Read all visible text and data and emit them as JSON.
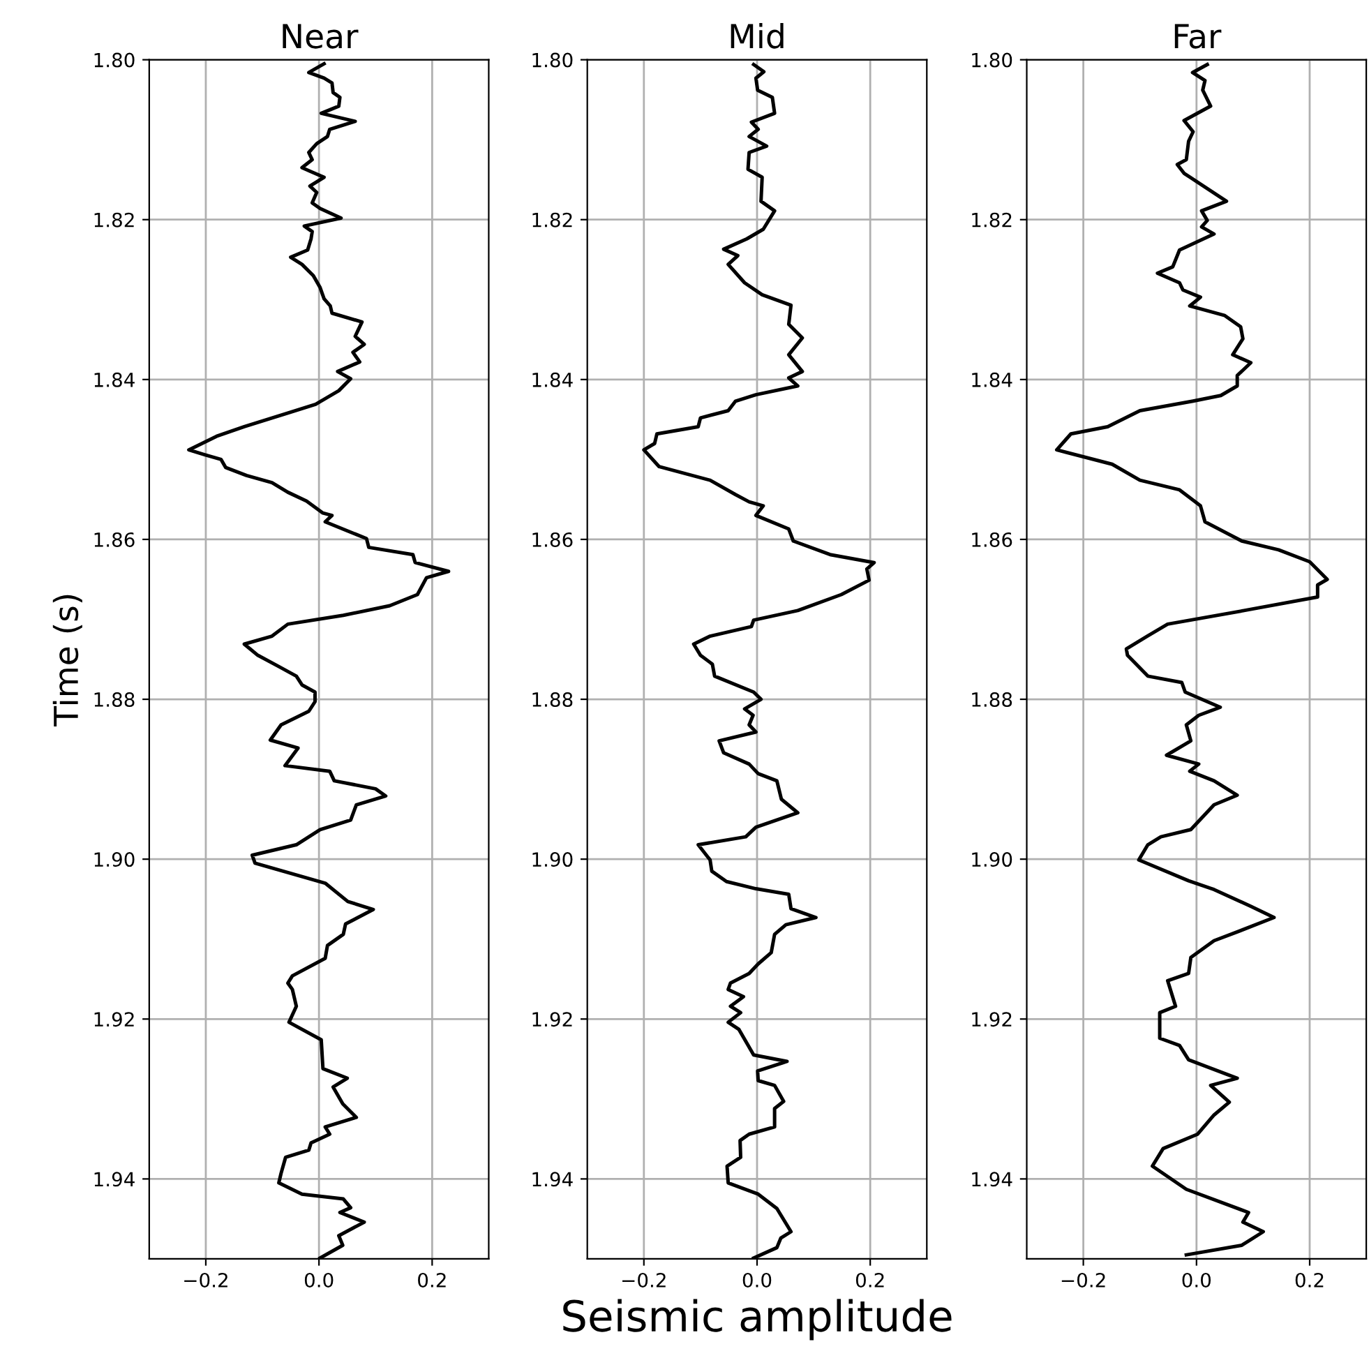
{
  "chart_data": [
    {
      "type": "line",
      "title": "Near",
      "ylabel": "Time (s)",
      "xlim": [
        -0.3,
        0.3
      ],
      "xticks": [
        {
          "value": -0.2,
          "label": "−0.2"
        },
        {
          "value": 0.0,
          "label": "0.0"
        },
        {
          "value": 0.2,
          "label": "0.2"
        }
      ],
      "ylim": [
        1.95,
        1.8
      ],
      "yticks": [
        {
          "value": 1.8,
          "label": "1.80"
        },
        {
          "value": 1.82,
          "label": "1.82"
        },
        {
          "value": 1.84,
          "label": "1.84"
        },
        {
          "value": 1.86,
          "label": "1.86"
        },
        {
          "value": 1.88,
          "label": "1.88"
        },
        {
          "value": 1.9,
          "label": "1.90"
        },
        {
          "value": 1.92,
          "label": "1.92"
        },
        {
          "value": 1.94,
          "label": "1.94"
        }
      ],
      "grid": true,
      "line_style": "solid",
      "marker": "none",
      "series": [
        {
          "color": "#000000",
          "x": [
            0.009,
            -0.018,
            0.009,
            0.023,
            0.025,
            0.037,
            0.035,
            0.004,
            0.064,
            0.019,
            0.015,
            -0.004,
            -0.018,
            -0.012,
            -0.03,
            -0.014,
            0.009,
            -0.016,
            -0.004,
            -0.012,
            0.002,
            0.039,
            -0.026,
            -0.012,
            -0.014,
            -0.02,
            -0.05,
            -0.03,
            -0.01,
            0.002,
            0.009,
            0.02,
            0.023,
            0.076,
            0.064,
            0.08,
            0.06,
            0.072,
            0.033,
            0.056,
            0.035,
            -0.006,
            -0.055,
            -0.132,
            -0.181,
            -0.23,
            -0.202,
            -0.173,
            -0.165,
            -0.128,
            -0.083,
            -0.055,
            -0.022,
            0.007,
            0.023,
            0.011,
            0.084,
            0.088,
            0.166,
            0.17,
            0.229,
            0.19,
            0.174,
            0.125,
            0.043,
            -0.055,
            -0.083,
            -0.132,
            -0.108,
            -0.071,
            -0.04,
            -0.03,
            -0.007,
            -0.007,
            -0.018,
            -0.067,
            -0.086,
            -0.037,
            -0.06,
            0.019,
            0.027,
            0.1,
            0.118,
            0.066,
            0.056,
            0.002,
            -0.04,
            -0.118,
            -0.113,
            0.011,
            0.051,
            0.096,
            0.047,
            0.043,
            0.015,
            0.011,
            -0.047,
            -0.055,
            -0.047,
            -0.04,
            -0.053,
            0.004,
            0.007,
            0.05,
            0.025,
            0.042,
            0.066,
            0.011,
            0.019,
            -0.014,
            -0.018,
            -0.059,
            -0.067,
            -0.071,
            -0.03,
            0.043,
            0.056,
            0.037,
            0.08,
            0.035,
            0.042,
            0.002
          ],
          "values": [
            1.8005,
            1.8016,
            1.8023,
            1.8029,
            1.8041,
            1.8047,
            1.8058,
            1.8067,
            1.8077,
            1.8087,
            1.8096,
            1.8105,
            1.8116,
            1.8125,
            1.8135,
            1.814,
            1.8147,
            1.8158,
            1.8166,
            1.8179,
            1.8186,
            1.8198,
            1.8208,
            1.8215,
            1.8224,
            1.8238,
            1.8247,
            1.8256,
            1.827,
            1.8285,
            1.8299,
            1.8308,
            1.8317,
            1.8328,
            1.8346,
            1.8356,
            1.8366,
            1.8378,
            1.839,
            1.8399,
            1.8414,
            1.8431,
            1.8442,
            1.8459,
            1.8471,
            1.8488,
            1.8494,
            1.85,
            1.851,
            1.852,
            1.8529,
            1.8541,
            1.8552,
            1.8567,
            1.857,
            1.8578,
            1.8599,
            1.861,
            1.8619,
            1.8629,
            1.864,
            1.8648,
            1.8669,
            1.8683,
            1.8695,
            1.8706,
            1.8721,
            1.8731,
            1.8745,
            1.8759,
            1.8771,
            1.8782,
            1.8791,
            1.8803,
            1.8815,
            1.8832,
            1.8851,
            1.8861,
            1.8883,
            1.889,
            1.8902,
            1.8912,
            1.8921,
            1.8932,
            1.8951,
            1.8963,
            1.8982,
            1.8995,
            1.9005,
            1.903,
            1.9053,
            1.9063,
            1.9081,
            1.9094,
            1.9108,
            1.9124,
            1.9146,
            1.9155,
            1.9163,
            1.9184,
            1.9204,
            1.9226,
            1.9262,
            1.9274,
            1.9285,
            1.9306,
            1.9323,
            1.9335,
            1.9344,
            1.9355,
            1.9364,
            1.9373,
            1.9393,
            1.9405,
            1.9419,
            1.9425,
            1.9436,
            1.9442,
            1.9454,
            1.9471,
            1.9483,
            1.9499
          ]
        }
      ]
    },
    {
      "type": "line",
      "title": "Mid",
      "xlabel": "Seismic amplitude",
      "xlim": [
        -0.3,
        0.3
      ],
      "xticks": [
        {
          "value": -0.2,
          "label": "−0.2"
        },
        {
          "value": 0.0,
          "label": "0.0"
        },
        {
          "value": 0.2,
          "label": "0.2"
        }
      ],
      "ylim": [
        1.95,
        1.8
      ],
      "yticks": [
        {
          "value": 1.8,
          "label": "1.80"
        },
        {
          "value": 1.82,
          "label": "1.82"
        },
        {
          "value": 1.84,
          "label": "1.84"
        },
        {
          "value": 1.86,
          "label": "1.86"
        },
        {
          "value": 1.88,
          "label": "1.88"
        },
        {
          "value": 1.9,
          "label": "1.90"
        },
        {
          "value": 1.92,
          "label": "1.92"
        },
        {
          "value": 1.94,
          "label": "1.94"
        }
      ],
      "grid": true,
      "line_style": "solid",
      "marker": "none",
      "series": [
        {
          "color": "#000000",
          "x": [
            -0.006,
            0.012,
            -0.002,
            0.001,
            0.027,
            0.031,
            -0.01,
            0.002,
            -0.014,
            0.017,
            -0.014,
            -0.016,
            0.009,
            0.007,
            0.031,
            0.011,
            -0.018,
            -0.059,
            -0.034,
            -0.051,
            -0.022,
            0.009,
            0.06,
            0.056,
            0.08,
            0.056,
            0.08,
            0.056,
            0.072,
            -0.002,
            -0.038,
            -0.051,
            -0.1,
            -0.104,
            -0.177,
            -0.181,
            -0.2,
            -0.173,
            -0.083,
            -0.038,
            -0.014,
            0.011,
            -0.002,
            0.056,
            0.064,
            0.129,
            0.207,
            0.194,
            0.198,
            0.149,
            0.072,
            -0.006,
            -0.01,
            -0.083,
            -0.112,
            -0.1,
            -0.079,
            -0.075,
            -0.006,
            0.007,
            -0.022,
            -0.007,
            -0.014,
            -0.002,
            -0.067,
            -0.059,
            -0.014,
            0.002,
            0.035,
            0.043,
            0.072,
            -0.002,
            -0.02,
            -0.104,
            -0.083,
            -0.08,
            -0.054,
            -0.002,
            0.056,
            0.06,
            0.104,
            0.051,
            0.031,
            0.025,
            0.002,
            -0.014,
            -0.047,
            -0.051,
            -0.024,
            -0.047,
            -0.029,
            -0.051,
            -0.032,
            -0.006,
            0.053,
            0.001,
            0.002,
            0.031,
            0.047,
            0.031,
            0.031,
            -0.014,
            -0.03,
            -0.029,
            -0.053,
            -0.051,
            0.002,
            0.035,
            0.06,
            0.042,
            0.035,
            -0.006
          ],
          "values": [
            1.8006,
            1.8015,
            1.8023,
            1.8038,
            1.8047,
            1.8067,
            1.8078,
            1.8087,
            1.8096,
            1.8108,
            1.8116,
            1.8137,
            1.8147,
            1.8177,
            1.8189,
            1.8212,
            1.8224,
            1.8237,
            1.8245,
            1.8256,
            1.8279,
            1.8294,
            1.8307,
            1.8331,
            1.8348,
            1.8369,
            1.839,
            1.8398,
            1.8408,
            1.8419,
            1.8427,
            1.8439,
            1.8448,
            1.8459,
            1.8468,
            1.848,
            1.8488,
            1.8509,
            1.8526,
            1.8544,
            1.8553,
            1.8558,
            1.857,
            1.8587,
            1.8602,
            1.8619,
            1.8629,
            1.8637,
            1.8651,
            1.8669,
            1.8689,
            1.8701,
            1.8709,
            1.8721,
            1.8731,
            1.8745,
            1.8756,
            1.8771,
            1.8791,
            1.88,
            1.8812,
            1.882,
            1.8832,
            1.8841,
            1.8852,
            1.8867,
            1.8881,
            1.8893,
            1.8902,
            1.8925,
            1.8942,
            1.896,
            1.8972,
            1.8982,
            1.9001,
            1.9015,
            1.9028,
            1.9037,
            1.9044,
            1.9062,
            1.9073,
            1.9082,
            1.9094,
            1.9117,
            1.9131,
            1.9143,
            1.9155,
            1.9163,
            1.9172,
            1.9184,
            1.9192,
            1.9204,
            1.9213,
            1.9245,
            1.9253,
            1.9265,
            1.9277,
            1.9283,
            1.9303,
            1.9312,
            1.9335,
            1.9344,
            1.9352,
            1.9373,
            1.9384,
            1.9405,
            1.9419,
            1.9437,
            1.9466,
            1.9474,
            1.9486,
            1.9499
          ]
        }
      ]
    },
    {
      "type": "line",
      "title": "Far",
      "xlim": [
        -0.3,
        0.3
      ],
      "xticks": [
        {
          "value": -0.2,
          "label": "−0.2"
        },
        {
          "value": 0.0,
          "label": "0.0"
        },
        {
          "value": 0.2,
          "label": "0.2"
        }
      ],
      "ylim": [
        1.95,
        1.8
      ],
      "yticks": [
        {
          "value": 1.8,
          "label": "1.80"
        },
        {
          "value": 1.82,
          "label": "1.82"
        },
        {
          "value": 1.84,
          "label": "1.84"
        },
        {
          "value": 1.86,
          "label": "1.86"
        },
        {
          "value": 1.88,
          "label": "1.88"
        },
        {
          "value": 1.9,
          "label": "1.90"
        },
        {
          "value": 1.92,
          "label": "1.92"
        },
        {
          "value": 1.94,
          "label": "1.94"
        }
      ],
      "grid": true,
      "line_style": "solid",
      "marker": "none",
      "series": [
        {
          "color": "#000000",
          "x": [
            0.019,
            -0.007,
            0.015,
            0.011,
            0.025,
            -0.022,
            -0.006,
            -0.014,
            -0.018,
            -0.034,
            -0.022,
            0.053,
            0.009,
            0.019,
            0.009,
            0.031,
            -0.03,
            -0.042,
            -0.069,
            -0.03,
            -0.024,
            0.007,
            -0.012,
            0.05,
            0.078,
            0.082,
            0.064,
            0.096,
            0.072,
            0.072,
            0.043,
            -0.006,
            -0.1,
            -0.157,
            -0.222,
            -0.247,
            -0.149,
            -0.1,
            -0.03,
            0.007,
            0.015,
            0.08,
            0.145,
            0.2,
            0.231,
            0.214,
            0.214,
            0.084,
            -0.051,
            -0.087,
            -0.124,
            -0.122,
            -0.086,
            -0.026,
            -0.02,
            0.042,
            0.004,
            -0.018,
            -0.01,
            -0.053,
            0.004,
            -0.012,
            0.031,
            0.072,
            0.031,
            -0.01,
            -0.063,
            -0.086,
            -0.102,
            -0.014,
            0.031,
            0.096,
            0.137,
            0.072,
            0.031,
            -0.01,
            -0.014,
            -0.051,
            -0.037,
            -0.065,
            -0.065,
            -0.03,
            -0.014,
            0.072,
            0.025,
            0.058,
            0.031,
            0.002,
            -0.059,
            -0.078,
            -0.018,
            0.092,
            0.082,
            0.118,
            0.08,
            -0.018
          ],
          "values": [
            1.8006,
            1.8016,
            1.8026,
            1.8038,
            1.8058,
            1.8076,
            1.809,
            1.8102,
            1.8125,
            1.8131,
            1.8142,
            1.8177,
            1.8189,
            1.8201,
            1.8209,
            1.8218,
            1.8238,
            1.8259,
            1.8267,
            1.8279,
            1.8288,
            1.8297,
            1.8308,
            1.832,
            1.8334,
            1.8349,
            1.8369,
            1.8379,
            1.8395,
            1.8408,
            1.842,
            1.8427,
            1.8439,
            1.8459,
            1.8468,
            1.8488,
            1.8506,
            1.8526,
            1.8538,
            1.8558,
            1.8578,
            1.8602,
            1.8613,
            1.8628,
            1.865,
            1.8657,
            1.8672,
            1.8689,
            1.8706,
            1.8721,
            1.8737,
            1.8745,
            1.8771,
            1.8779,
            1.8791,
            1.881,
            1.882,
            1.8832,
            1.8852,
            1.887,
            1.8881,
            1.889,
            1.8902,
            1.892,
            1.8932,
            1.8963,
            1.8972,
            1.8982,
            1.9001,
            1.9027,
            1.9038,
            1.9059,
            1.9073,
            1.9091,
            1.9102,
            1.9123,
            1.9143,
            1.9152,
            1.9184,
            1.9192,
            1.9224,
            1.9233,
            1.9251,
            1.9274,
            1.9283,
            1.9304,
            1.932,
            1.9344,
            1.9362,
            1.9384,
            1.9413,
            1.9442,
            1.9454,
            1.9466,
            1.9483,
            1.9495
          ]
        }
      ]
    }
  ]
}
